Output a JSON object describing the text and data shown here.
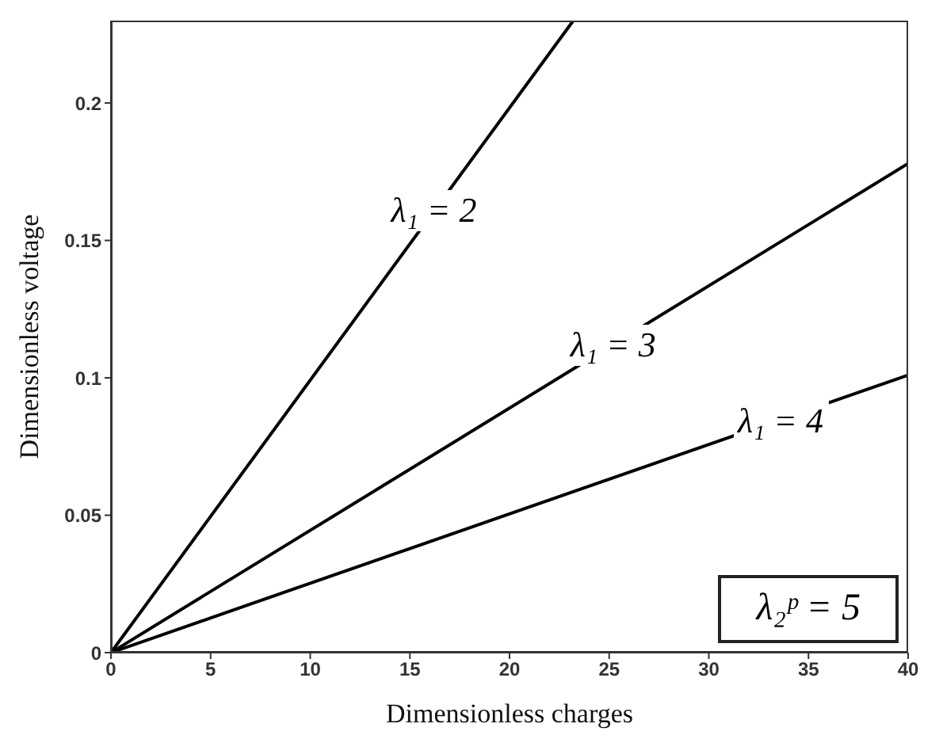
{
  "chart_data": {
    "type": "line",
    "xlabel": "Dimensionless charges",
    "ylabel": "Dimensionless voltage",
    "xlim": [
      0,
      40
    ],
    "ylim": [
      0,
      0.23
    ],
    "xticks": [
      0,
      5,
      10,
      15,
      20,
      25,
      30,
      35,
      40
    ],
    "yticks": [
      0,
      0.05,
      0.1,
      0.15,
      0.2
    ],
    "grid": false,
    "marker": "none",
    "line_style": "solid",
    "series": [
      {
        "color": "#000000",
        "x": [
          0,
          23.2
        ],
        "values": [
          0,
          0.23
        ]
      },
      {
        "color": "#000000",
        "x": [
          0,
          40
        ],
        "values": [
          0,
          0.178
        ]
      },
      {
        "color": "#000000",
        "x": [
          0,
          40
        ],
        "values": [
          0,
          0.101
        ]
      }
    ],
    "annotations": [
      {
        "text": "λ₁ = 2",
        "x": 16.2,
        "y": 0.161
      },
      {
        "text": "λ₁ = 3",
        "x": 25.2,
        "y": 0.112
      },
      {
        "text": "λ₁ = 4",
        "x": 33.6,
        "y": 0.084
      },
      "λ₂ᵖ = 5"
    ]
  }
}
